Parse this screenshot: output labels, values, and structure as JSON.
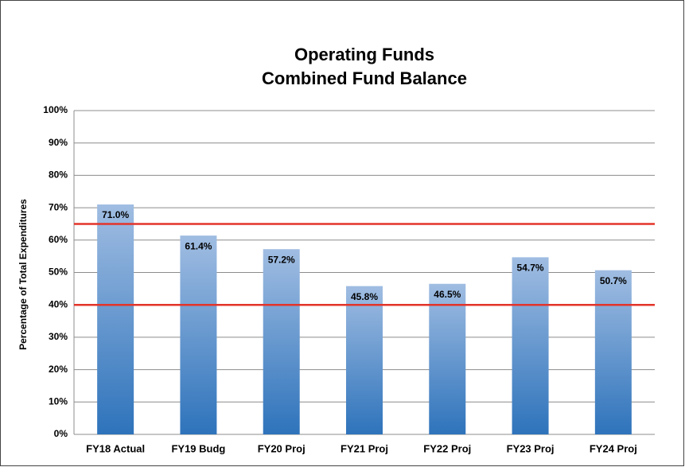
{
  "chart_data": {
    "type": "bar",
    "title": [
      "Operating Funds",
      "Combined Fund Balance"
    ],
    "y_axis_label": "Percentage of Total Expenditures",
    "categories": [
      "FY18 Actual",
      "FY19 Budg",
      "FY20 Proj",
      "FY21 Proj",
      "FY22 Proj",
      "FY23 Proj",
      "FY24 Proj"
    ],
    "values": [
      71.0,
      61.4,
      57.2,
      45.8,
      46.5,
      54.7,
      50.7
    ],
    "value_labels": [
      "71.0%",
      "61.4%",
      "57.2%",
      "45.8%",
      "46.5%",
      "54.7%",
      "50.7%"
    ],
    "color": [
      "#a0bde2",
      "#2e73bb"
    ],
    "ylim": [
      0,
      100
    ],
    "yticks": [
      {
        "value": 0,
        "label": "0%"
      },
      {
        "value": 10,
        "label": "10%"
      },
      {
        "value": 20,
        "label": "20%"
      },
      {
        "value": 30,
        "label": "30%"
      },
      {
        "value": 40,
        "label": "40%"
      },
      {
        "value": 50,
        "label": "50%"
      },
      {
        "value": 60,
        "label": "60%"
      },
      {
        "value": 70,
        "label": "70%"
      },
      {
        "value": 80,
        "label": "80%"
      },
      {
        "value": 90,
        "label": "90%"
      },
      {
        "value": 100,
        "label": "100%"
      }
    ],
    "grid": true,
    "reference_lines": [
      65,
      40
    ],
    "reference_color": "#e3342a"
  }
}
